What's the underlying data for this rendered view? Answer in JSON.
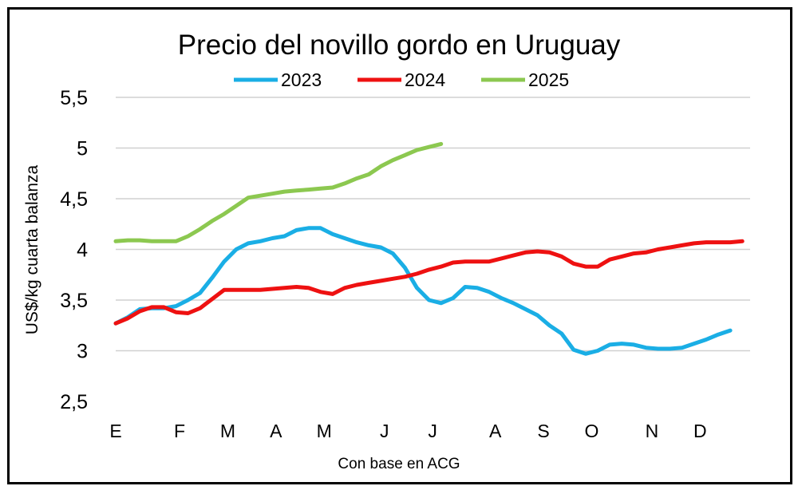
{
  "chart_data": {
    "type": "line",
    "title": "Precio del novillo gordo en Uruguay",
    "ylabel": "US$/kg cuarta balanza",
    "xlabel": "Con base en ACG",
    "ylim": [
      2.5,
      5.5
    ],
    "yticks": [
      "2,5",
      "3",
      "3,5",
      "4",
      "4,5",
      "5",
      "5,5"
    ],
    "ytick_values": [
      2.5,
      3,
      3.5,
      4,
      4.5,
      5,
      5.5
    ],
    "grid": true,
    "legend": "top",
    "x_unit": "week",
    "xlim": [
      0,
      53
    ],
    "month_ticks": [
      {
        "label": "E",
        "week": 0
      },
      {
        "label": "F",
        "week": 5.3
      },
      {
        "label": "M",
        "week": 9.3
      },
      {
        "label": "A",
        "week": 13.3
      },
      {
        "label": "M",
        "week": 17.3
      },
      {
        "label": "J",
        "week": 22.3
      },
      {
        "label": "J",
        "week": 26.3
      },
      {
        "label": "A",
        "week": 31.5
      },
      {
        "label": "S",
        "week": 35.5
      },
      {
        "label": "O",
        "week": 39.5
      },
      {
        "label": "N",
        "week": 44.5
      },
      {
        "label": "D",
        "week": 48.5
      }
    ],
    "series": [
      {
        "name": "2023",
        "color": "#1aaee5",
        "values": [
          3.27,
          3.33,
          3.41,
          3.42,
          3.42,
          3.44,
          3.5,
          3.57,
          3.72,
          3.88,
          4.0,
          4.06,
          4.08,
          4.11,
          4.13,
          4.19,
          4.21,
          4.21,
          4.15,
          4.11,
          4.07,
          4.04,
          4.02,
          3.96,
          3.82,
          3.62,
          3.5,
          3.47,
          3.52,
          3.63,
          3.62,
          3.58,
          3.52,
          3.47,
          3.41,
          3.35,
          3.25,
          3.17,
          3.01,
          2.97,
          3.0,
          3.06,
          3.07,
          3.06,
          3.03,
          3.02,
          3.02,
          3.03,
          3.07,
          3.11,
          3.16,
          3.2
        ]
      },
      {
        "name": "2024",
        "color": "#ee1111",
        "values": [
          3.27,
          3.32,
          3.39,
          3.43,
          3.43,
          3.38,
          3.37,
          3.42,
          3.51,
          3.6,
          3.6,
          3.6,
          3.6,
          3.61,
          3.62,
          3.63,
          3.62,
          3.58,
          3.56,
          3.62,
          3.65,
          3.67,
          3.69,
          3.71,
          3.73,
          3.76,
          3.8,
          3.83,
          3.87,
          3.88,
          3.88,
          3.88,
          3.91,
          3.94,
          3.97,
          3.98,
          3.97,
          3.93,
          3.86,
          3.83,
          3.83,
          3.9,
          3.93,
          3.96,
          3.97,
          4.0,
          4.02,
          4.04,
          4.06,
          4.07,
          4.07,
          4.07,
          4.08
        ]
      },
      {
        "name": "2025",
        "color": "#8cc850",
        "values": [
          4.08,
          4.09,
          4.09,
          4.08,
          4.08,
          4.08,
          4.13,
          4.2,
          4.28,
          4.35,
          4.43,
          4.51,
          4.53,
          4.55,
          4.57,
          4.58,
          4.59,
          4.6,
          4.61,
          4.65,
          4.7,
          4.74,
          4.82,
          4.88,
          4.93,
          4.98,
          5.01,
          5.04
        ]
      }
    ]
  }
}
